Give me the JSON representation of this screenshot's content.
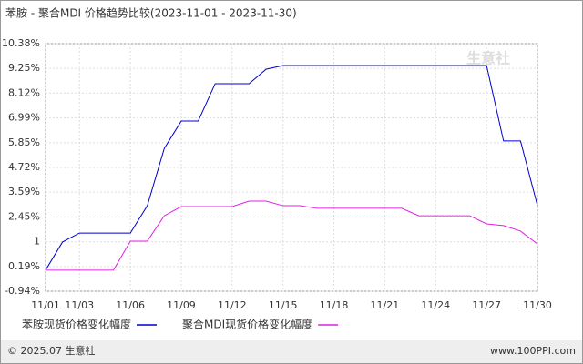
{
  "chart_data": {
    "type": "line",
    "title": "苯胺 - 聚合MDI 价格趋势比较(2023-11-01 - 2023-11-30)",
    "categories": [
      "11/01",
      null,
      "11/03",
      null,
      null,
      "11/06",
      null,
      null,
      "11/09",
      null,
      null,
      "11/12",
      null,
      null,
      "11/15",
      null,
      null,
      "11/18",
      null,
      null,
      "11/21",
      null,
      null,
      "11/24",
      null,
      null,
      "11/27",
      null,
      null,
      "11/30"
    ],
    "series": [
      {
        "name": "苯胺现货价格变化幅度",
        "color": "#0000cc",
        "values": [
          0.02,
          1.31,
          1.72,
          1.72,
          1.72,
          1.72,
          2.97,
          5.59,
          6.84,
          6.84,
          8.55,
          8.55,
          8.55,
          9.21,
          9.38,
          9.38,
          9.38,
          9.38,
          9.38,
          9.38,
          9.38,
          9.38,
          9.38,
          9.38,
          9.38,
          9.38,
          9.38,
          5.93,
          5.93,
          2.97
        ]
      },
      {
        "name": "聚合MDI现货价格变化幅度",
        "color": "#e020e0",
        "values": [
          0.02,
          0.02,
          0.02,
          0.02,
          0.02,
          1.35,
          1.35,
          2.51,
          2.93,
          2.93,
          2.93,
          2.93,
          3.18,
          3.18,
          2.97,
          2.97,
          2.85,
          2.85,
          2.85,
          2.85,
          2.85,
          2.85,
          2.51,
          2.51,
          2.51,
          2.51,
          2.14,
          2.06,
          1.81,
          1.22
        ]
      }
    ],
    "ylim": [
      -0.94,
      10.38
    ],
    "yticks": [
      {
        "value": -0.94,
        "label": "-0.94%"
      },
      {
        "value": 0.19,
        "label": "0.19%"
      },
      {
        "value": 1.32,
        "label": "1"
      },
      {
        "value": 2.45,
        "label": "2.45%"
      },
      {
        "value": 3.59,
        "label": "3.59%"
      },
      {
        "value": 4.72,
        "label": "4.72%"
      },
      {
        "value": 5.85,
        "label": "5.85%"
      },
      {
        "value": 6.99,
        "label": "6.99%"
      },
      {
        "value": 8.12,
        "label": "8.12%"
      },
      {
        "value": 9.25,
        "label": "9.25%"
      },
      {
        "value": 10.38,
        "label": "10.38%"
      }
    ],
    "grid": true,
    "watermark": "生意社",
    "footer_left": "© 2025.07 生意社",
    "footer_right": "www.100PPI.com"
  }
}
